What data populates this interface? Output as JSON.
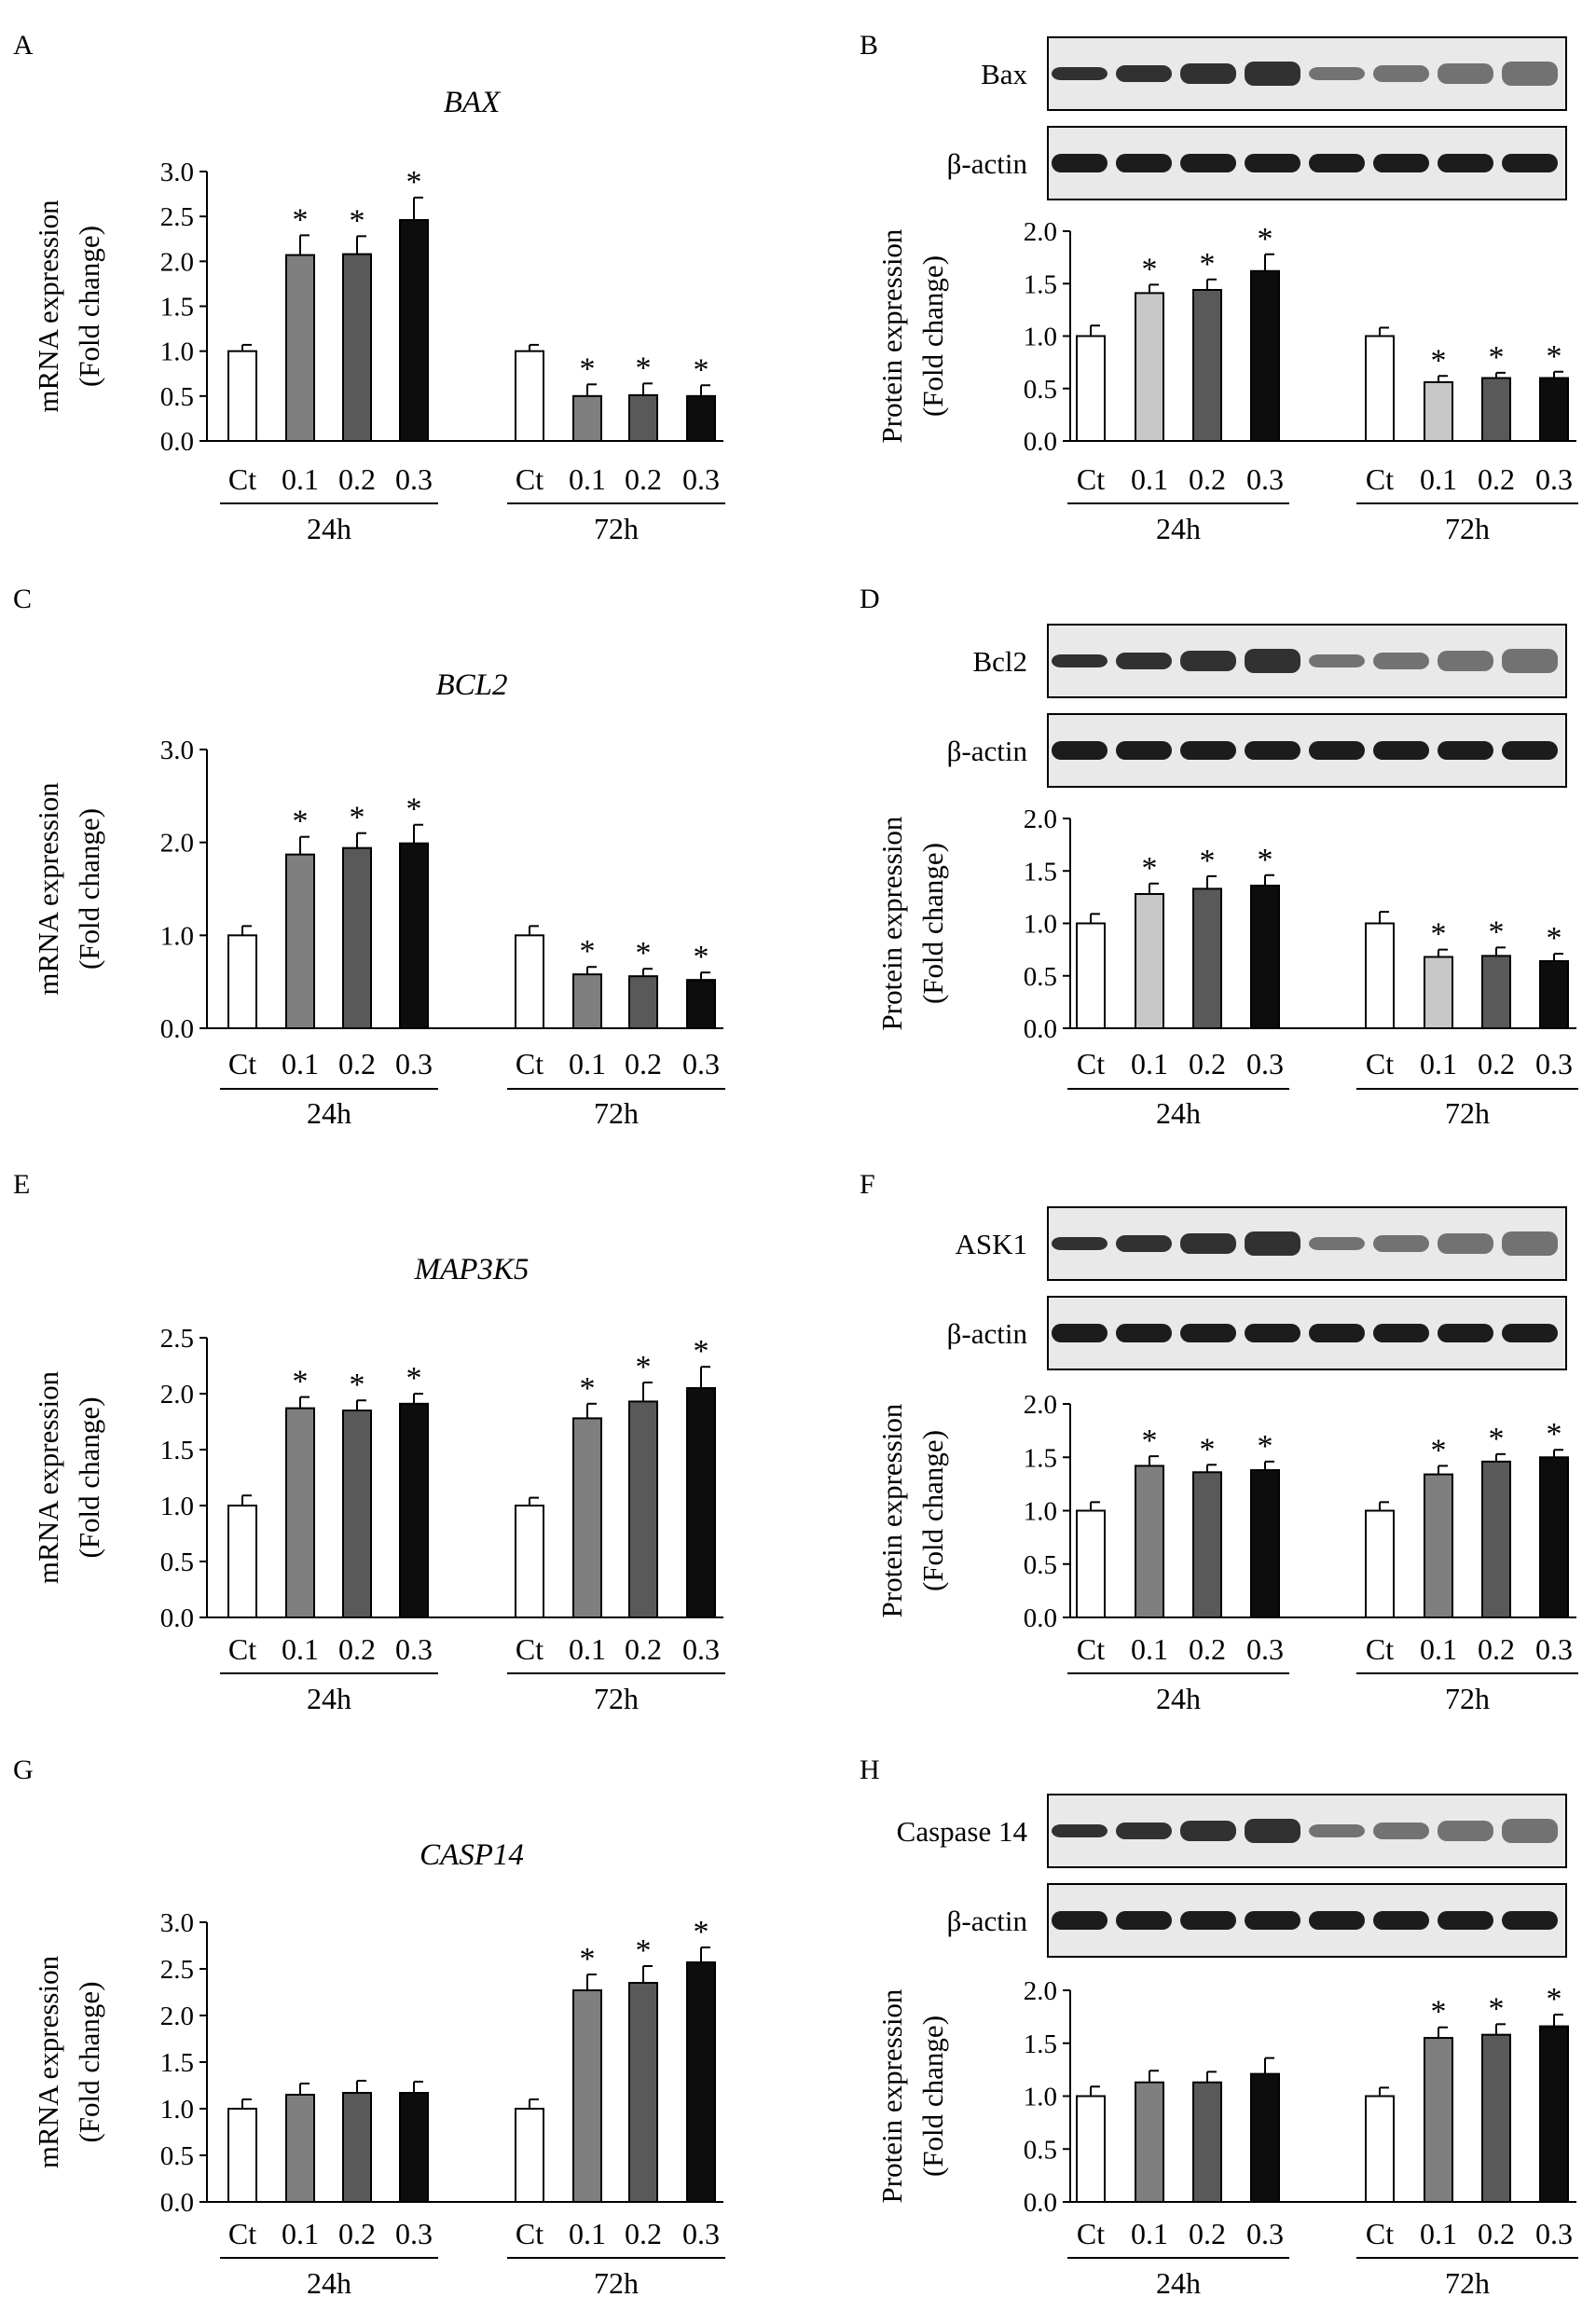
{
  "figure": {
    "bar_colors": {
      "Ct": "#ffffff",
      "0.1_light": "#c8c8c8",
      "0.1": "#7f7f7f",
      "0.2": "#595959",
      "0.3": "#0d0d0d"
    },
    "significance_marker": "*"
  },
  "chart_data": [
    {
      "panel": "A",
      "type": "bar",
      "title": "BAX",
      "ylabel": [
        "mRNA expression",
        "(Fold change)"
      ],
      "ylim": [
        0,
        3.0
      ],
      "yticks": [
        "0.0",
        "0.5",
        "1.0",
        "1.5",
        "2.0",
        "2.5",
        "3.0"
      ],
      "groups": [
        "24h",
        "72h"
      ],
      "categories": [
        "Ct",
        "0.1",
        "0.2",
        "0.3"
      ],
      "series": [
        {
          "group": "24h",
          "values": [
            1.0,
            2.07,
            2.08,
            2.46
          ],
          "errors": [
            0.07,
            0.22,
            0.2,
            0.25
          ],
          "significant": [
            false,
            true,
            true,
            true
          ]
        },
        {
          "group": "72h",
          "values": [
            1.0,
            0.5,
            0.51,
            0.5
          ],
          "errors": [
            0.07,
            0.13,
            0.13,
            0.12
          ],
          "significant": [
            false,
            true,
            true,
            true
          ]
        }
      ]
    },
    {
      "panel": "B",
      "type": "bar",
      "blot_labels": [
        "Bax",
        "β-actin"
      ],
      "ylabel": [
        "Protein expression",
        "(Fold change)"
      ],
      "ylim": [
        0,
        2.0
      ],
      "yticks": [
        "0.0",
        "0.5",
        "1.0",
        "1.5",
        "2.0"
      ],
      "groups": [
        "24h",
        "72h"
      ],
      "categories": [
        "Ct",
        "0.1",
        "0.2",
        "0.3"
      ],
      "light_first_treatment": true,
      "series": [
        {
          "group": "24h",
          "values": [
            1.0,
            1.41,
            1.44,
            1.62
          ],
          "errors": [
            0.1,
            0.08,
            0.1,
            0.16
          ],
          "significant": [
            false,
            true,
            true,
            true
          ]
        },
        {
          "group": "72h",
          "values": [
            1.0,
            0.56,
            0.6,
            0.6
          ],
          "errors": [
            0.08,
            0.06,
            0.05,
            0.06
          ],
          "significant": [
            false,
            true,
            true,
            true
          ]
        }
      ]
    },
    {
      "panel": "C",
      "type": "bar",
      "title": "BCL2",
      "ylabel": [
        "mRNA expression",
        "(Fold change)"
      ],
      "ylim": [
        0,
        3.0
      ],
      "yticks": [
        "0.0",
        "1.0",
        "2.0",
        "3.0"
      ],
      "groups": [
        "24h",
        "72h"
      ],
      "categories": [
        "Ct",
        "0.1",
        "0.2",
        "0.3"
      ],
      "series": [
        {
          "group": "24h",
          "values": [
            1.0,
            1.87,
            1.94,
            1.99
          ],
          "errors": [
            0.1,
            0.19,
            0.16,
            0.2
          ],
          "significant": [
            false,
            true,
            true,
            true
          ]
        },
        {
          "group": "72h",
          "values": [
            1.0,
            0.58,
            0.56,
            0.52
          ],
          "errors": [
            0.1,
            0.08,
            0.08,
            0.08
          ],
          "significant": [
            false,
            true,
            true,
            true
          ]
        }
      ]
    },
    {
      "panel": "D",
      "type": "bar",
      "blot_labels": [
        "Bcl2",
        "β-actin"
      ],
      "ylabel": [
        "Protein expression",
        "(Fold change)"
      ],
      "ylim": [
        0,
        2.0
      ],
      "yticks": [
        "0.0",
        "0.5",
        "1.0",
        "1.5",
        "2.0"
      ],
      "groups": [
        "24h",
        "72h"
      ],
      "categories": [
        "Ct",
        "0.1",
        "0.2",
        "0.3"
      ],
      "light_first_treatment": true,
      "series": [
        {
          "group": "24h",
          "values": [
            1.0,
            1.28,
            1.33,
            1.36
          ],
          "errors": [
            0.09,
            0.1,
            0.12,
            0.1
          ],
          "significant": [
            false,
            true,
            true,
            true
          ]
        },
        {
          "group": "72h",
          "values": [
            1.0,
            0.68,
            0.69,
            0.64
          ],
          "errors": [
            0.11,
            0.07,
            0.08,
            0.07
          ],
          "significant": [
            false,
            true,
            true,
            true
          ]
        }
      ]
    },
    {
      "panel": "E",
      "type": "bar",
      "title": "MAP3K5",
      "ylabel": [
        "mRNA expression",
        "(Fold change)"
      ],
      "ylim": [
        0,
        2.5
      ],
      "yticks": [
        "0.0",
        "0.5",
        "1.0",
        "1.5",
        "2.0",
        "2.5"
      ],
      "groups": [
        "24h",
        "72h"
      ],
      "categories": [
        "Ct",
        "0.1",
        "0.2",
        "0.3"
      ],
      "series": [
        {
          "group": "24h",
          "values": [
            1.0,
            1.87,
            1.85,
            1.91
          ],
          "errors": [
            0.09,
            0.1,
            0.09,
            0.09
          ],
          "significant": [
            false,
            true,
            true,
            true
          ]
        },
        {
          "group": "72h",
          "values": [
            1.0,
            1.78,
            1.93,
            2.05
          ],
          "errors": [
            0.07,
            0.13,
            0.17,
            0.19
          ],
          "significant": [
            false,
            true,
            true,
            true
          ]
        }
      ]
    },
    {
      "panel": "F",
      "type": "bar",
      "blot_labels": [
        "ASK1",
        "β-actin"
      ],
      "ylabel": [
        "Protein expression",
        "(Fold change)"
      ],
      "ylim": [
        0,
        2.0
      ],
      "yticks": [
        "0.0",
        "0.5",
        "1.0",
        "1.5",
        "2.0"
      ],
      "groups": [
        "24h",
        "72h"
      ],
      "categories": [
        "Ct",
        "0.1",
        "0.2",
        "0.3"
      ],
      "light_first_treatment": false,
      "series": [
        {
          "group": "24h",
          "values": [
            1.0,
            1.42,
            1.36,
            1.38
          ],
          "errors": [
            0.08,
            0.09,
            0.07,
            0.08
          ],
          "significant": [
            false,
            true,
            true,
            true
          ]
        },
        {
          "group": "72h",
          "values": [
            1.0,
            1.34,
            1.46,
            1.5
          ],
          "errors": [
            0.08,
            0.08,
            0.07,
            0.07
          ],
          "significant": [
            false,
            true,
            true,
            true
          ]
        }
      ]
    },
    {
      "panel": "G",
      "type": "bar",
      "title": "CASP14",
      "ylabel": [
        "mRNA expression",
        "(Fold change)"
      ],
      "ylim": [
        0,
        3.0
      ],
      "yticks": [
        "0.0",
        "0.5",
        "1.0",
        "1.5",
        "2.0",
        "2.5",
        "3.0"
      ],
      "groups": [
        "24h",
        "72h"
      ],
      "categories": [
        "Ct",
        "0.1",
        "0.2",
        "0.3"
      ],
      "series": [
        {
          "group": "24h",
          "values": [
            1.0,
            1.15,
            1.17,
            1.17
          ],
          "errors": [
            0.1,
            0.12,
            0.13,
            0.12
          ],
          "significant": [
            false,
            false,
            false,
            false
          ]
        },
        {
          "group": "72h",
          "values": [
            1.0,
            2.27,
            2.35,
            2.57
          ],
          "errors": [
            0.1,
            0.17,
            0.18,
            0.16
          ],
          "significant": [
            false,
            true,
            true,
            true
          ]
        }
      ]
    },
    {
      "panel": "H",
      "type": "bar",
      "blot_labels": [
        "Caspase 14",
        "β-actin"
      ],
      "ylabel": [
        "Protein expression",
        "(Fold change)"
      ],
      "ylim": [
        0,
        2.0
      ],
      "yticks": [
        "0.0",
        "0.5",
        "1.0",
        "1.5",
        "2.0"
      ],
      "groups": [
        "24h",
        "72h"
      ],
      "categories": [
        "Ct",
        "0.1",
        "0.2",
        "0.3"
      ],
      "light_first_treatment": false,
      "series": [
        {
          "group": "24h",
          "values": [
            1.0,
            1.13,
            1.13,
            1.21
          ],
          "errors": [
            0.09,
            0.11,
            0.1,
            0.15
          ],
          "significant": [
            false,
            false,
            false,
            false
          ]
        },
        {
          "group": "72h",
          "values": [
            1.0,
            1.55,
            1.58,
            1.66
          ],
          "errors": [
            0.08,
            0.1,
            0.1,
            0.11
          ],
          "significant": [
            false,
            true,
            true,
            true
          ]
        }
      ]
    }
  ]
}
